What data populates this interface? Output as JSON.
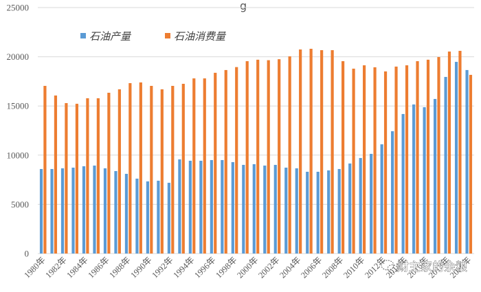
{
  "chart_data": {
    "type": "bar",
    "title": "",
    "xlabel": "",
    "ylabel": "",
    "ylim": [
      0,
      25000
    ],
    "yticks": [
      0,
      5000,
      10000,
      15000,
      20000,
      25000
    ],
    "grid": true,
    "legend_position": "top-left-inside",
    "categories": [
      "1980年",
      "1981年",
      "1982年",
      "1983年",
      "1984年",
      "1985年",
      "1986年",
      "1987年",
      "1988年",
      "1989年",
      "1990年",
      "1991年",
      "1992年",
      "1993年",
      "1994年",
      "1995年",
      "1996年",
      "1997年",
      "1998年",
      "1999年",
      "2000年",
      "2001年",
      "2002年",
      "2003年",
      "2004年",
      "2005年",
      "2006年",
      "2007年",
      "2008年",
      "2009年",
      "2010年",
      "2011年",
      "2012年",
      "2013年",
      "2014年",
      "2015年",
      "2016年",
      "2017年",
      "2018年",
      "2019年",
      "2020年"
    ],
    "xtick_labels": [
      "1980年",
      "1982年",
      "1984年",
      "1986年",
      "1988年",
      "1990年",
      "1992年",
      "1994年",
      "1996年",
      "1998年",
      "2000年",
      "2002年",
      "2004年",
      "2006年",
      "2008年",
      "2010年",
      "2012年",
      "2014年",
      "2016年",
      "2018年",
      "2020年"
    ],
    "series": [
      {
        "name": "石油产量",
        "color": "#5B9BD5",
        "values": [
          8590,
          8590,
          8660,
          8730,
          8870,
          8940,
          8660,
          8380,
          8100,
          7610,
          7330,
          7400,
          7190,
          9570,
          9430,
          9430,
          9500,
          9500,
          9290,
          9010,
          9080,
          8940,
          9010,
          8730,
          8660,
          8310,
          8310,
          8450,
          8590,
          9150,
          9710,
          10130,
          11100,
          12430,
          14180,
          15150,
          14870,
          15710,
          17950,
          19480,
          18650
        ]
      },
      {
        "name": "石油消费量",
        "color": "#ED7D31",
        "values": [
          17040,
          16060,
          15290,
          15220,
          15780,
          15780,
          16340,
          16690,
          17320,
          17390,
          17040,
          16690,
          17040,
          17250,
          17800,
          17800,
          18370,
          18650,
          18950,
          19550,
          19700,
          19650,
          19750,
          20040,
          20740,
          20810,
          20670,
          20670,
          19550,
          18790,
          19130,
          18930,
          18510,
          19000,
          19130,
          19550,
          19700,
          19970,
          20530,
          20600,
          18160
        ]
      }
    ]
  },
  "legend": {
    "items": [
      {
        "label": "石油产量",
        "color": "#5B9BD5"
      },
      {
        "label": "石油消费量",
        "color": "#ED7D31"
      }
    ]
  },
  "title_fragment": "g",
  "watermark": {
    "text": "财主家的余粮",
    "icon": "wechat-icon"
  },
  "colors": {
    "grid": "#D9D9D9",
    "axis_text": "#595959"
  }
}
